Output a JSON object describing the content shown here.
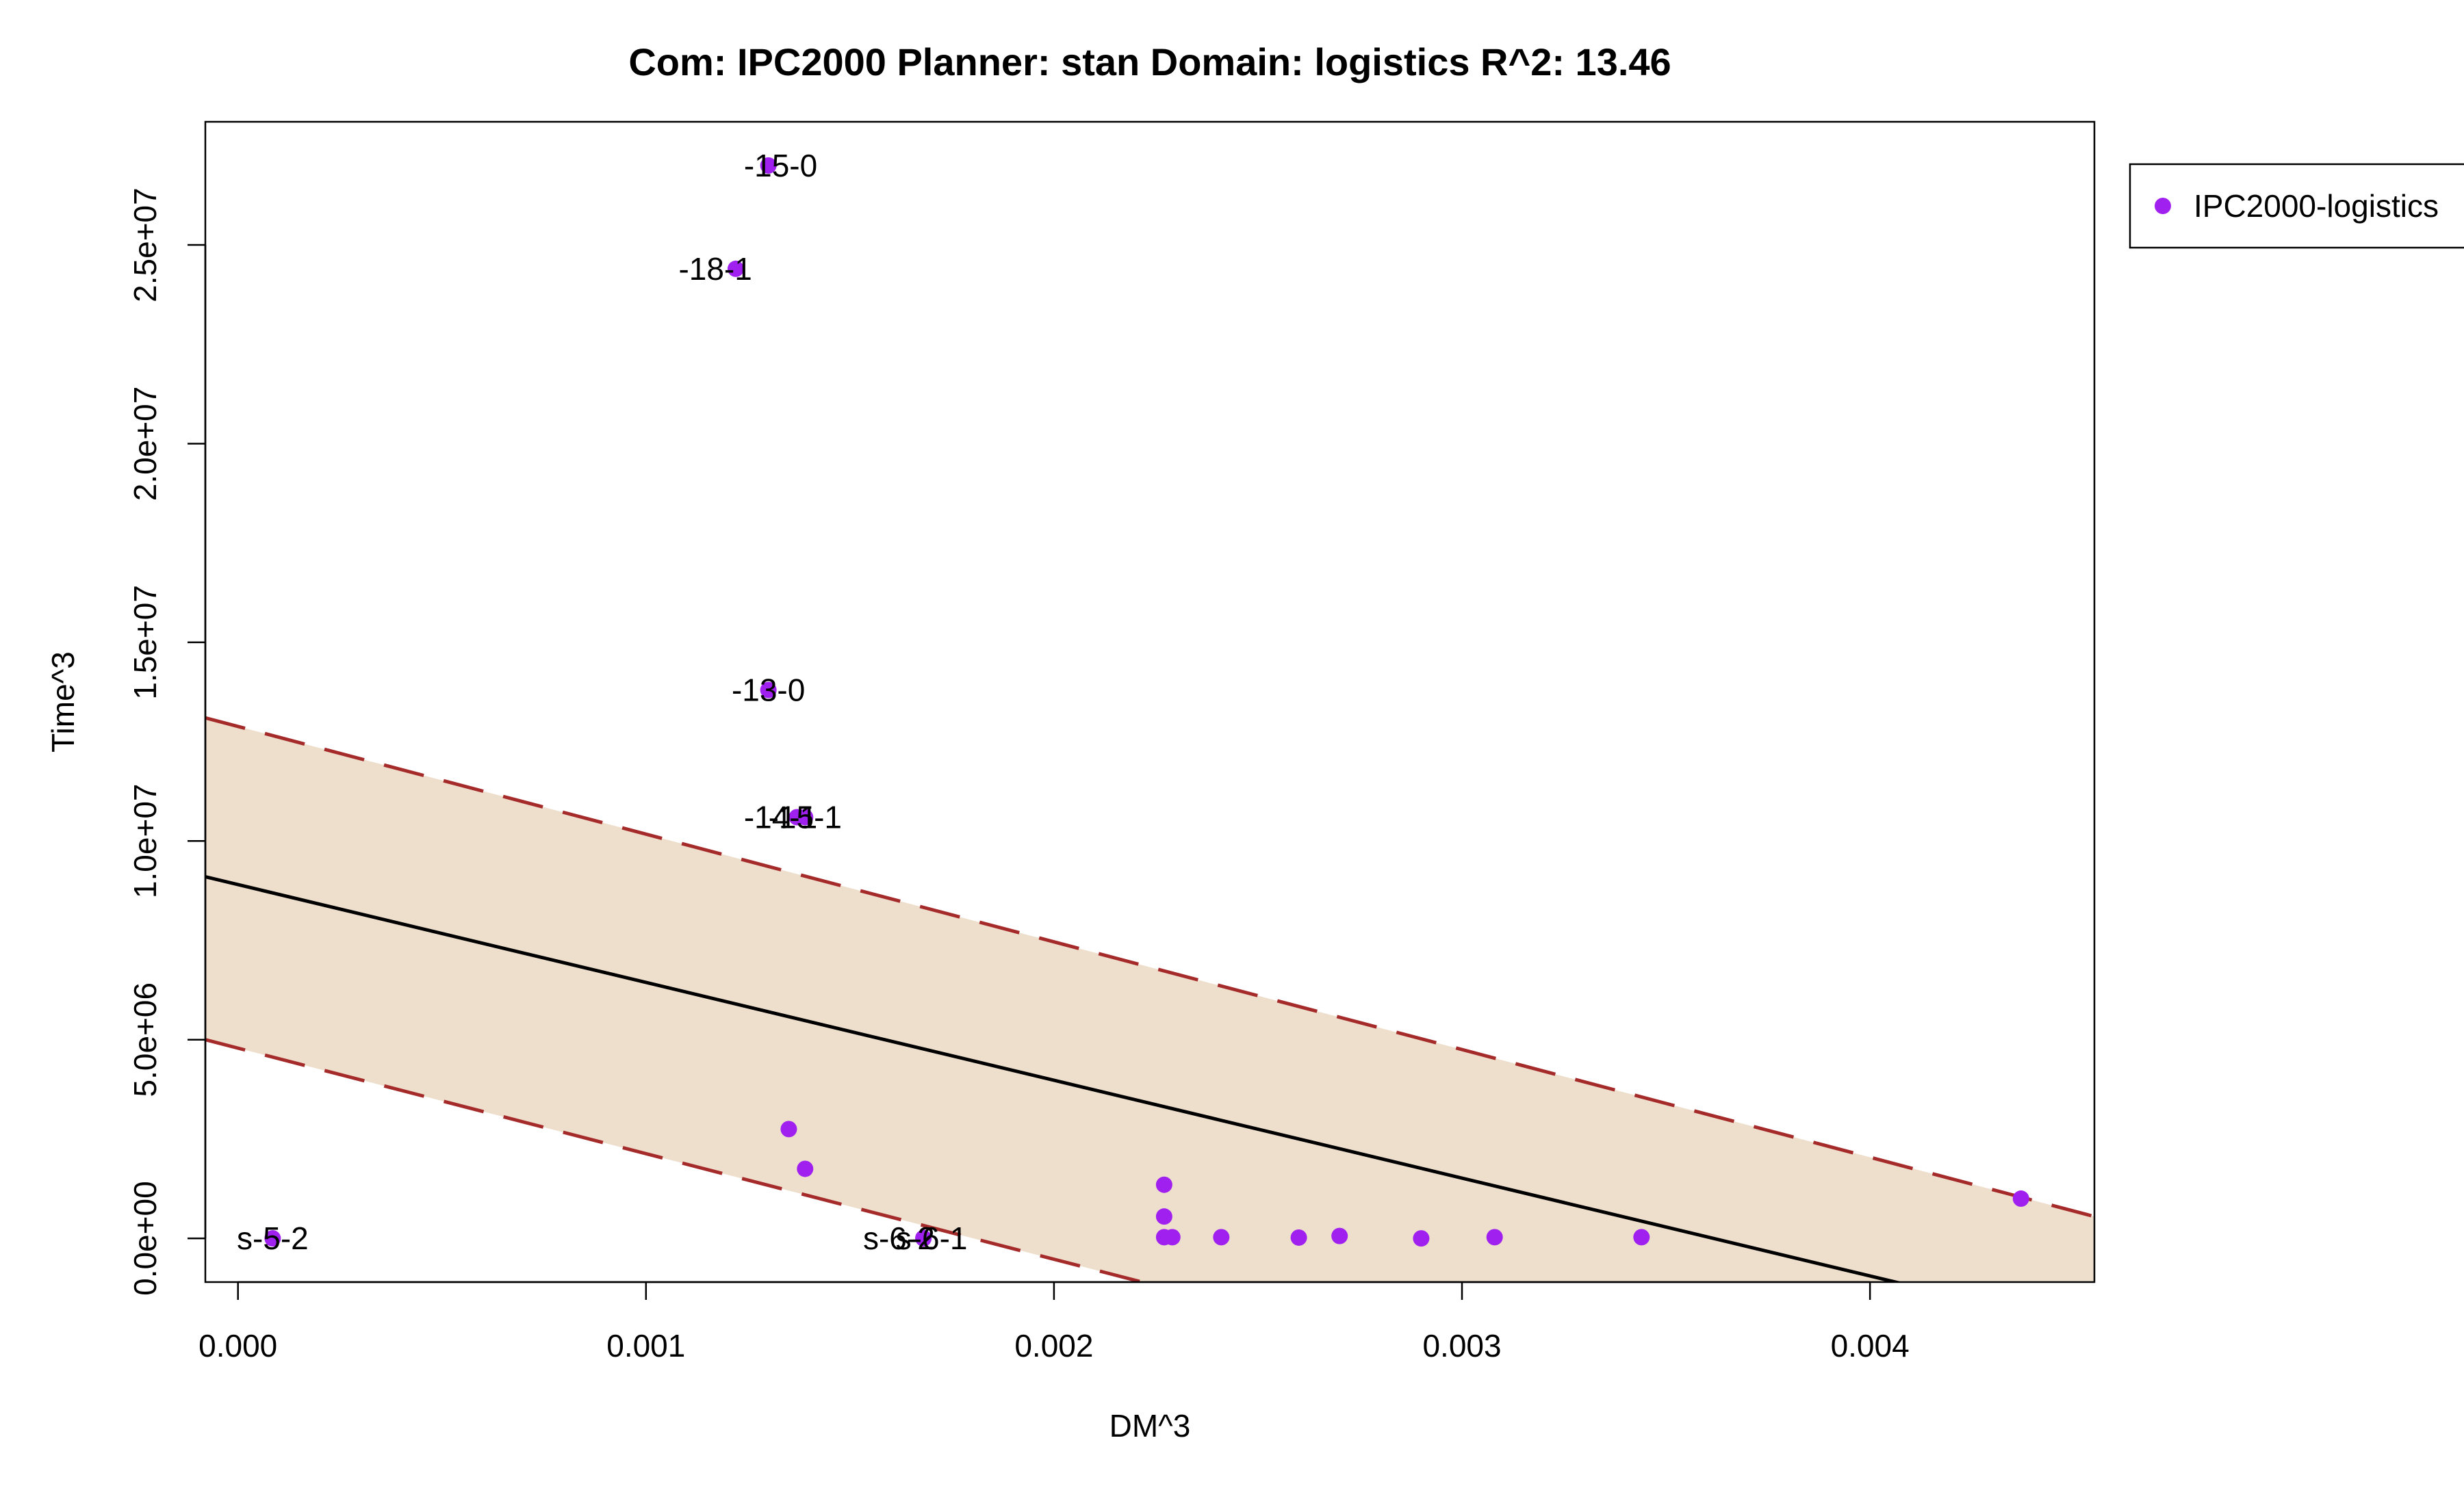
{
  "chart_data": {
    "type": "scatter",
    "title": "Com: IPC2000 Planner: stan Domain: logistics R^2: 13.46",
    "xlabel": "DM^3",
    "ylabel": "Time^3",
    "xlim": [
      -8e-05,
      0.00455
    ],
    "ylim": [
      -1100000,
      28100000
    ],
    "x_ticks": [
      0,
      0.001,
      0.002,
      0.003,
      0.004
    ],
    "x_tick_labels": [
      "0.000",
      "0.001",
      "0.002",
      "0.003",
      "0.004"
    ],
    "y_ticks": [
      0,
      5000000,
      10000000,
      15000000,
      20000000,
      25000000
    ],
    "y_tick_labels": [
      "0.0e+00",
      "5.0e+06",
      "1.0e+07",
      "1.5e+07",
      "2.0e+07",
      "2.5e+07"
    ],
    "grid": false,
    "legend": {
      "position": "outside-right",
      "entries": [
        "IPC2000-logistics"
      ]
    },
    "colors": {
      "points": "#a020f0",
      "fit_line": "#000000",
      "band_fill": "#eedfcc",
      "band_edge": "#a52a2a"
    },
    "regression": {
      "fit": [
        [
          -8e-05,
          9100000
        ],
        [
          0.00455,
          -2300000
        ]
      ],
      "upper": [
        [
          -8e-05,
          13100000
        ],
        [
          0.00455,
          550000
        ]
      ],
      "lower": [
        [
          -8e-05,
          5000000
        ],
        [
          0.00455,
          -7300000
        ]
      ]
    },
    "series": [
      {
        "name": "IPC2000-logistics",
        "points": [
          {
            "x": 8.5e-05,
            "y": 0
          },
          {
            "x": 0.00168,
            "y": 0
          },
          {
            "x": 0.00168,
            "y": 10000
          },
          {
            "x": 0.0013,
            "y": 27000000
          },
          {
            "x": 0.00122,
            "y": 24400000
          },
          {
            "x": 0.0013,
            "y": 13800000
          },
          {
            "x": 0.00137,
            "y": 10600000
          },
          {
            "x": 0.00139,
            "y": 10600000
          },
          {
            "x": 0.00135,
            "y": 2750000
          },
          {
            "x": 0.00139,
            "y": 1750000
          },
          {
            "x": 0.00227,
            "y": 1350000
          },
          {
            "x": 0.00227,
            "y": 550000
          },
          {
            "x": 0.00227,
            "y": 30000
          },
          {
            "x": 0.00229,
            "y": 30000
          },
          {
            "x": 0.00241,
            "y": 30000
          },
          {
            "x": 0.0026,
            "y": 20000
          },
          {
            "x": 0.0027,
            "y": 60000
          },
          {
            "x": 0.0029,
            "y": 0
          },
          {
            "x": 0.00308,
            "y": 30000
          },
          {
            "x": 0.00344,
            "y": 30000
          },
          {
            "x": 0.00437,
            "y": 1000000
          }
        ]
      }
    ],
    "annotations": [
      {
        "text": "-15-0",
        "x": 0.00133,
        "y": 27000000
      },
      {
        "text": "-18-1",
        "x": 0.00117,
        "y": 24400000
      },
      {
        "text": "-13-0",
        "x": 0.0013,
        "y": 13800000
      },
      {
        "text": "-14-1",
        "x": 0.00133,
        "y": 10600000
      },
      {
        "text": "-15-1",
        "x": 0.00139,
        "y": 10600000
      },
      {
        "text": "s-5-2",
        "x": 8.5e-05,
        "y": 0
      },
      {
        "text": "s-6-2",
        "x": 0.00162,
        "y": 0
      },
      {
        "text": "s-6-1",
        "x": 0.0017,
        "y": 0
      }
    ]
  }
}
